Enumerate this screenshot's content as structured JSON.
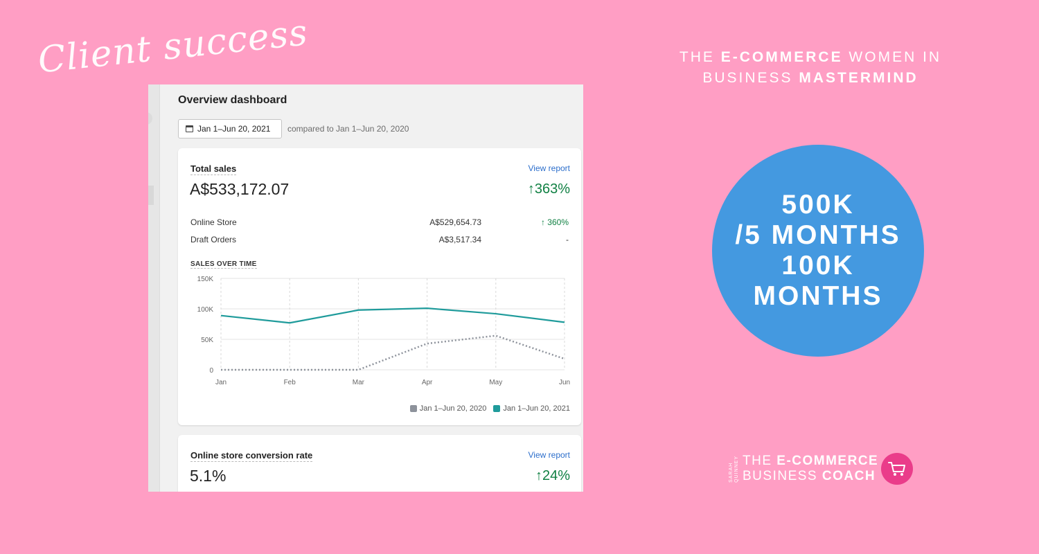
{
  "headline": "Client success",
  "mastermind": {
    "line1_pre": "THE ",
    "line1_bold": "E-COMMERCE",
    "line1_post": " WOMEN IN",
    "line2_pre": "BUSINESS ",
    "line2_bold": "MASTERMIND"
  },
  "dashboard": {
    "title": "Overview dashboard",
    "date_range": "Jan 1–Jun 20, 2021",
    "compared": "compared to Jan 1–Jun 20, 2020",
    "total_sales": {
      "label": "Total sales",
      "view_report": "View report",
      "value": "A$533,172.07",
      "change": "↑363%",
      "rows": [
        {
          "name": "Online Store",
          "value": "A$529,654.73",
          "change": "↑ 360%"
        },
        {
          "name": "Draft Orders",
          "value": "A$3,517.34",
          "change": "-"
        }
      ],
      "chart_label": "SALES OVER TIME",
      "legend": [
        "Jan 1–Jun 20, 2020",
        "Jan 1–Jun 20, 2021"
      ]
    },
    "conversion": {
      "label": "Online store conversion rate",
      "view_report": "View report",
      "value": "5.1%",
      "change": "↑24%"
    }
  },
  "chart_data": {
    "type": "line",
    "title": "SALES OVER TIME",
    "categories": [
      "Jan",
      "Feb",
      "Mar",
      "Apr",
      "May",
      "Jun"
    ],
    "yticks": [
      "150K",
      "100K",
      "50K",
      "0"
    ],
    "ylim": [
      0,
      150000
    ],
    "grid": true,
    "legend_position": "bottom-right",
    "series": [
      {
        "name": "Jan 1–Jun 20, 2020",
        "color": "#8d929b",
        "style": "dotted",
        "values": [
          0,
          0,
          0,
          43000,
          56000,
          18000
        ]
      },
      {
        "name": "Jan 1–Jun 20, 2021",
        "color": "#1f9b9b",
        "style": "solid",
        "values": [
          89000,
          77000,
          98000,
          101000,
          92000,
          78000
        ]
      }
    ]
  },
  "badge": {
    "line1": "500K",
    "line2": "/5 MONTHS",
    "line3": "100K",
    "line4": "MONTHS"
  },
  "logo": {
    "sarah": "SARAH",
    "quinney": "QUINNEY",
    "line1_pre": "THE ",
    "line1_bold": "E-COMMERCE",
    "line2_pre": "BUSINESS ",
    "line2_bold": "COACH",
    "cart_icon": "shopping-cart-icon"
  },
  "colors": {
    "background": "#ff9ec4",
    "badge": "#4499e0",
    "positive": "#108043",
    "link": "#2c6ecb",
    "logo_circle": "#ea3c8a"
  }
}
